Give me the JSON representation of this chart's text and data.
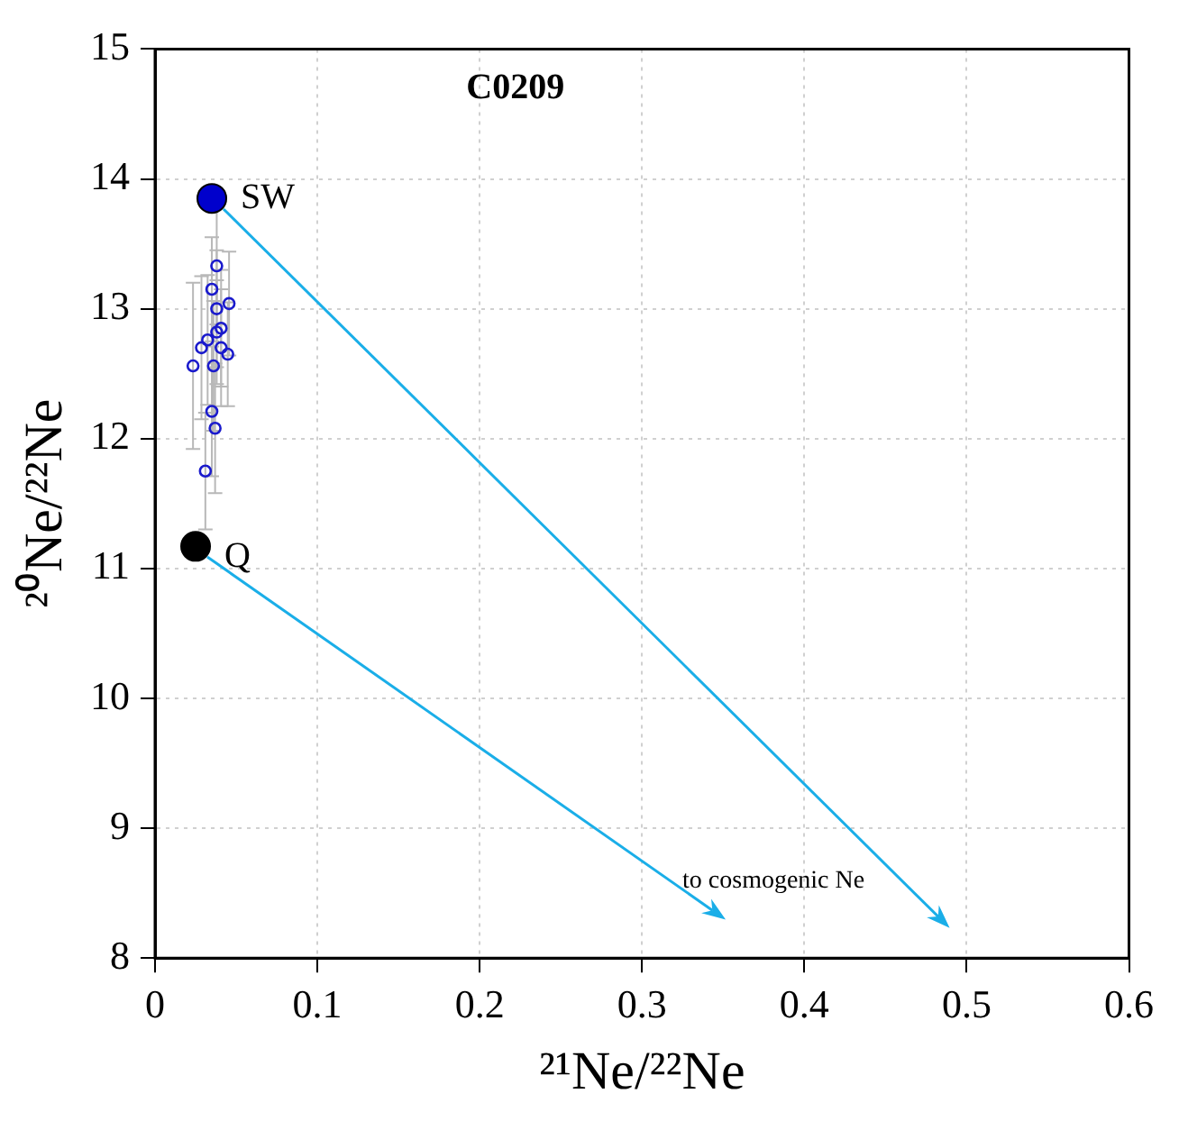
{
  "chart_data": {
    "type": "scatter",
    "title": "C0209",
    "xlabel": "²¹Ne/²²Ne",
    "ylabel": "²⁰Ne/²²Ne",
    "xlim": [
      0,
      0.6
    ],
    "xticks": [
      0,
      0.1,
      0.2,
      0.3,
      0.4,
      0.5,
      0.6
    ],
    "ylim": [
      8,
      15
    ],
    "yticks": [
      8,
      9,
      10,
      11,
      12,
      13,
      14,
      15
    ],
    "grid": true,
    "marker": "circle",
    "legend": false,
    "series": [
      {
        "color": "#1a1acc",
        "x": [
          0.038,
          0.035,
          0.0456,
          0.038,
          0.0407,
          0.038,
          0.0324,
          0.0286,
          0.0407,
          0.0448,
          0.0234,
          0.036,
          0.035,
          0.037,
          0.031
        ],
        "values": [
          13.33,
          13.15,
          13.04,
          13.0,
          12.85,
          12.82,
          12.76,
          12.7,
          12.7,
          12.65,
          12.56,
          12.56,
          12.21,
          12.08,
          11.75
        ],
        "errors": [
          0.45,
          0.4,
          0.4,
          0.45,
          0.45,
          0.4,
          0.5,
          0.55,
          0.45,
          0.4,
          0.64,
          0.5,
          0.5,
          0.5,
          0.45
        ]
      },
      {
        "color": "#0000cc",
        "x": [
          0.035
        ],
        "values": [
          13.85
        ]
      },
      {
        "color": "#000000",
        "x": [
          0.025
        ],
        "values": [
          11.17
        ]
      }
    ],
    "annotations": [
      {
        "text": "SW",
        "x": 0.035,
        "y": 13.85
      },
      {
        "text": "Q",
        "x": 0.025,
        "y": 11.17
      },
      "to cosmogenic Ne"
    ]
  }
}
